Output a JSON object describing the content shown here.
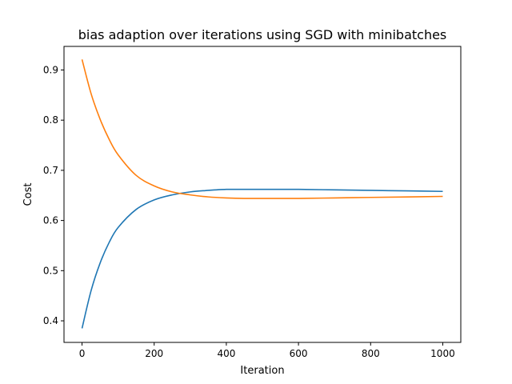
{
  "chart_data": {
    "type": "line",
    "title": "bias adaption over iterations using SGD with minibatches",
    "xlabel": "Iteration",
    "ylabel": "Cost",
    "xlim": [
      -50,
      1050
    ],
    "ylim": [
      0.357,
      0.947
    ],
    "xticks": [
      0,
      200,
      400,
      600,
      800,
      1000
    ],
    "yticks": [
      0.4,
      0.5,
      0.6,
      0.7,
      0.8,
      0.9
    ],
    "xtick_labels": [
      "0",
      "200",
      "400",
      "600",
      "800",
      "1000"
    ],
    "ytick_labels": [
      "0.4",
      "0.5",
      "0.6",
      "0.7",
      "0.8",
      "0.9"
    ],
    "grid": false,
    "x": [
      0,
      25,
      50,
      75,
      100,
      150,
      200,
      250,
      300,
      350,
      400,
      450,
      500,
      600,
      700,
      800,
      900,
      1000
    ],
    "series": [
      {
        "color": "#1f77b4",
        "values": [
          0.385,
          0.46,
          0.515,
          0.556,
          0.586,
          0.622,
          0.641,
          0.651,
          0.657,
          0.66,
          0.662,
          0.662,
          0.662,
          0.662,
          0.661,
          0.66,
          0.659,
          0.658
        ]
      },
      {
        "color": "#ff7f0e",
        "values": [
          0.921,
          0.853,
          0.802,
          0.762,
          0.731,
          0.69,
          0.669,
          0.657,
          0.651,
          0.647,
          0.645,
          0.644,
          0.644,
          0.644,
          0.645,
          0.646,
          0.647,
          0.648
        ]
      }
    ]
  }
}
